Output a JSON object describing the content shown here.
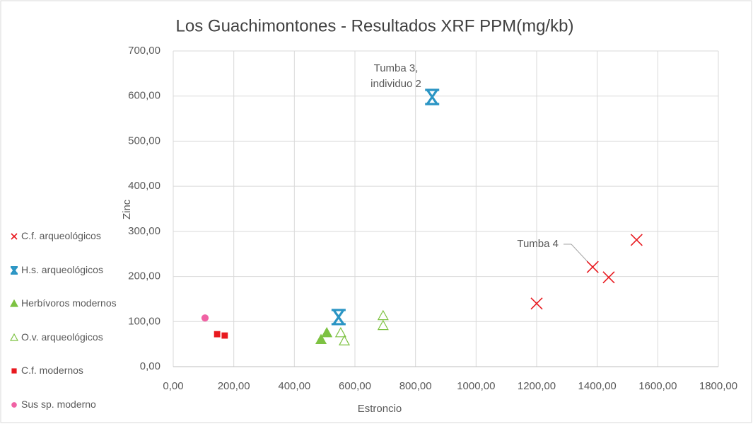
{
  "chart_data": {
    "type": "scatter",
    "title": "Los Guachimontones - Resultados XRF PPM(mg/kb)",
    "x_label": "Estroncio",
    "y_label": "Zinc",
    "xlim": [
      0,
      1800
    ],
    "xticks": [
      {
        "value": 0,
        "label": "0,00"
      },
      {
        "value": 200,
        "label": "200,00"
      },
      {
        "value": 400,
        "label": "400,00"
      },
      {
        "value": 600,
        "label": "600,00"
      },
      {
        "value": 800,
        "label": "800,00"
      },
      {
        "value": 1000,
        "label": "1000,00"
      },
      {
        "value": 1200,
        "label": "1200,00"
      },
      {
        "value": 1400,
        "label": "1400,00"
      },
      {
        "value": 1600,
        "label": "1600,00"
      },
      {
        "value": 1800,
        "label": "1800,00"
      }
    ],
    "ylim": [
      0,
      700
    ],
    "yticks": [
      {
        "value": 0,
        "label": "0,00"
      },
      {
        "value": 100,
        "label": "100,00"
      },
      {
        "value": 200,
        "label": "200,00"
      },
      {
        "value": 300,
        "label": "300,00"
      },
      {
        "value": 400,
        "label": "400,00"
      },
      {
        "value": 500,
        "label": "500,00"
      },
      {
        "value": 600,
        "label": "600,00"
      },
      {
        "value": 700,
        "label": "700,00"
      }
    ],
    "grid": true,
    "legend": "left",
    "series": [
      {
        "name": "C.f. arqueológicos",
        "color": "#e8191f",
        "marker": "x",
        "x": [
          1200,
          1385,
          1438,
          1530
        ],
        "values": [
          140,
          221,
          198,
          281
        ]
      },
      {
        "name": "H.s. arqueológicos",
        "color": "#2b95c4",
        "marker": "asterisk",
        "x": [
          855,
          546
        ],
        "values": [
          598,
          110
        ]
      },
      {
        "name": "Herbívoros modernos",
        "color": "#7dc242",
        "marker": "triangle",
        "x": [
          488,
          507
        ],
        "values": [
          60,
          75
        ]
      },
      {
        "name": "O.v. arqueológicos",
        "color": "#7dc242",
        "marker": "triangle-open",
        "x": [
          553,
          565,
          693,
          693
        ],
        "values": [
          75,
          57,
          113,
          91
        ]
      },
      {
        "name": "C.f. modernos",
        "color": "#e8191f",
        "marker": "square",
        "x": [
          145,
          170
        ],
        "values": [
          72,
          69
        ]
      },
      {
        "name": "Sus sp. moderno",
        "color": "#f062a4",
        "marker": "circle",
        "x": [
          105
        ],
        "values": [
          108
        ]
      }
    ],
    "annotations": [
      {
        "lines": [
          "Tumba 3,",
          "individuo 2"
        ]
      },
      {
        "lines": [
          "Tumba 4"
        ]
      }
    ]
  }
}
